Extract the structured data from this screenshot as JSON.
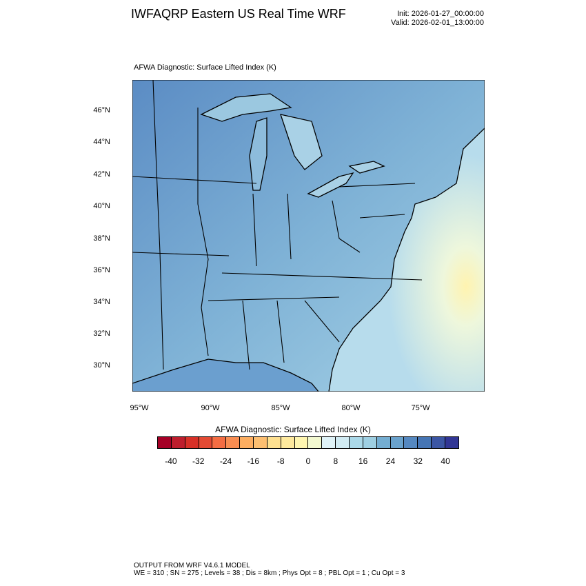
{
  "header": {
    "title": "IWFAQRP Eastern US Real Time WRF",
    "init": "Init: 2026-01-27_00:00:00",
    "valid": "Valid: 2026-02-01_13:00:00"
  },
  "plot": {
    "subtitle": "AFWA Diagnostic: Surface Lifted Index   (K)",
    "lat_labels": [
      "46°N",
      "44°N",
      "42°N",
      "40°N",
      "38°N",
      "36°N",
      "34°N",
      "32°N",
      "30°N"
    ],
    "lon_labels": [
      "95°W",
      "90°W",
      "85°W",
      "80°W",
      "75°W"
    ]
  },
  "colorbar": {
    "title": "AFWA Diagnostic: Surface Lifted Index  (K)",
    "labels": [
      "-40",
      "-32",
      "-24",
      "-16",
      "-8",
      "0",
      "8",
      "16",
      "24",
      "32",
      "40"
    ],
    "colors": [
      "#a50026",
      "#be1e2d",
      "#d73027",
      "#e34a33",
      "#f46d43",
      "#f88d52",
      "#fdae61",
      "#fdbf71",
      "#fee090",
      "#fee99d",
      "#fff6b0",
      "#f3f9d0",
      "#e0f3f8",
      "#d1ebf3",
      "#abd9e9",
      "#9ecfe2",
      "#74add1",
      "#6aa2cc",
      "#5588c0",
      "#4575b4",
      "#3b56a4",
      "#313695"
    ]
  },
  "footer": {
    "line1": "OUTPUT FROM WRF V4.6.1 MODEL",
    "line2": "WE = 310 ; SN = 275 ; Levels = 38 ; Dis = 8km ; Phys Opt = 8 ; PBL Opt = 1 ; Cu Opt = 3"
  }
}
